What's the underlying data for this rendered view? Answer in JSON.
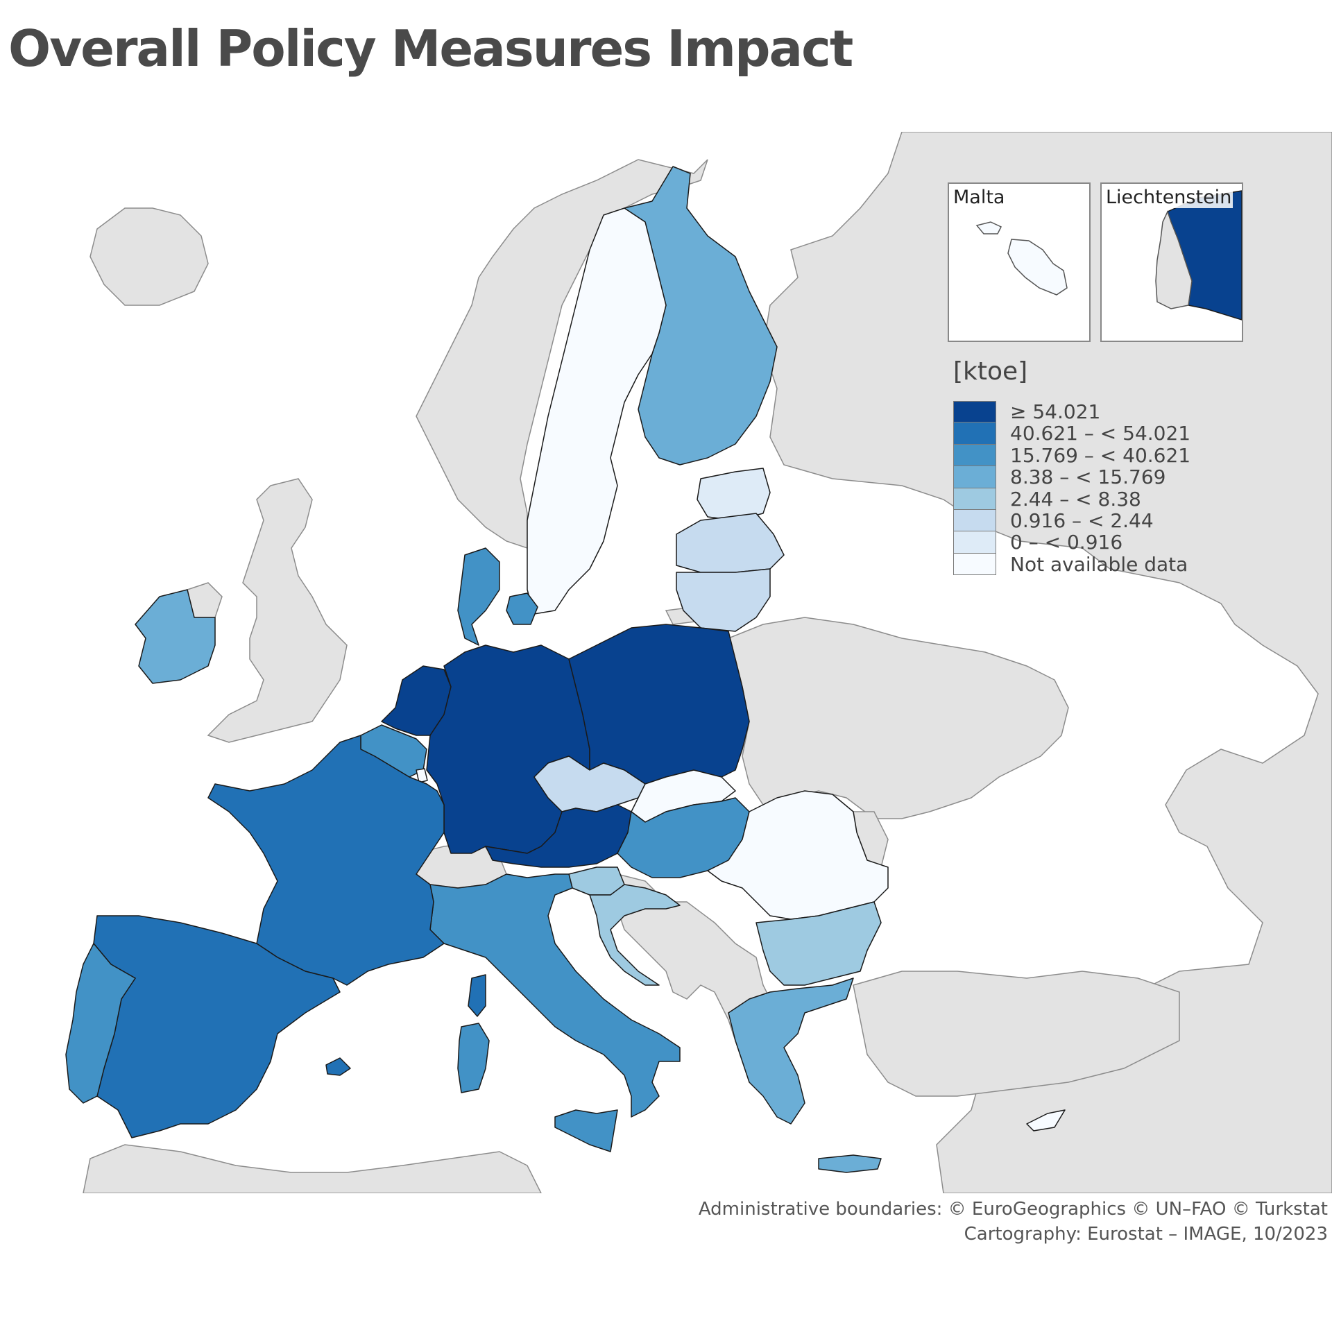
{
  "title": "Overall Policy Measures Impact",
  "legend": {
    "unit": "[ktoe]",
    "classes": [
      {
        "label": "≥ 54.021",
        "color": "#08428f"
      },
      {
        "label": "40.621 – < 54.021",
        "color": "#2171b5"
      },
      {
        "label": "15.769 – < 40.621",
        "color": "#4292c6"
      },
      {
        "label": "8.38 – < 15.769",
        "color": "#6baed6"
      },
      {
        "label": "2.44 – < 8.38",
        "color": "#9ecae1"
      },
      {
        "label": "0.916 – < 2.44",
        "color": "#c6dbef"
      },
      {
        "label": "0 – < 0.916",
        "color": "#deebf7"
      },
      {
        "label": "Not available data",
        "color": "#f7fbff"
      }
    ]
  },
  "insets": {
    "malta": {
      "label": "Malta",
      "class_index": 7
    },
    "liechtenstein": {
      "label": "Liechtenstein",
      "class_index": 0
    }
  },
  "countries": {
    "germany": 0,
    "poland": 0,
    "netherlands": 0,
    "austria": 0,
    "france": 1,
    "spain": 1,
    "italy": 2,
    "portugal": 2,
    "belgium": 2,
    "denmark": 2,
    "hungary": 2,
    "finland": 3,
    "ireland": 3,
    "greece": 3,
    "cyprus": 7,
    "croatia": 4,
    "slovenia": 4,
    "bulgaria": 4,
    "czechia": 5,
    "latvia": 5,
    "lithuania": 5,
    "estonia": 6,
    "sweden": 7,
    "slovakia": 7,
    "romania": 7,
    "luxembourg": 7
  },
  "colors": {
    "non_eu": "#e3e3e3",
    "sea": "#ffffff",
    "border": "#1a1a1a",
    "non_eu_border": "#8c8c8c"
  },
  "credits": {
    "line1": "Administrative boundaries: © EuroGeographics © UN–FAO © Turkstat",
    "line2": "Cartography: Eurostat – IMAGE, 10/2023"
  }
}
